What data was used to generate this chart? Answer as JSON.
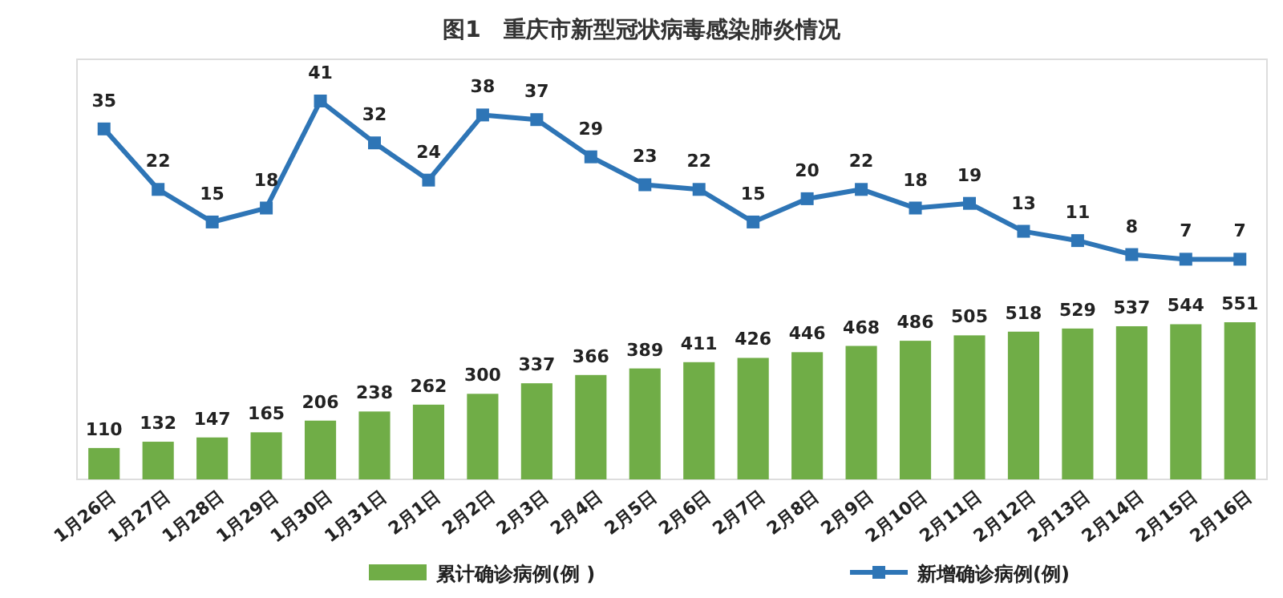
{
  "chart_data": [
    {
      "type": "line",
      "title": "图1　重庆市新型冠状病毒感染肺炎情况",
      "categories": [
        null,
        null,
        null,
        null,
        null,
        null,
        null,
        null,
        null,
        null,
        null,
        null,
        null,
        null,
        null,
        null,
        null,
        null,
        null,
        null,
        null,
        null
      ],
      "series": [
        {
          "name": "新增确诊病例(例)",
          "color": "#2e75b6",
          "values": [
            35,
            22,
            15,
            18,
            41,
            32,
            24,
            38,
            37,
            29,
            23,
            22,
            15,
            20,
            22,
            18,
            19,
            13,
            11,
            8,
            7,
            7
          ]
        }
      ],
      "data_labels": true,
      "marker": "square",
      "legend": "bottom"
    },
    {
      "type": "bar",
      "categories": [
        "1月26日",
        "1月27日",
        "1月28日",
        "1月29日",
        "1月30日",
        "1月31日",
        "2月1日",
        "2月2日",
        "2月3日",
        "2月4日",
        "2月5日",
        "2月6日",
        "2月7日",
        "2月8日",
        "2月9日",
        "2月10日",
        "2月11日",
        "2月12日",
        "2月13日",
        "2月14日",
        "2月15日",
        "2月16日"
      ],
      "series": [
        {
          "name": "累计确诊病例(例 )",
          "color": "#70ad47",
          "values": [
            110,
            132,
            147,
            165,
            206,
            238,
            262,
            300,
            337,
            366,
            389,
            411,
            426,
            446,
            468,
            486,
            505,
            518,
            529,
            537,
            544,
            551
          ]
        }
      ],
      "data_labels": true,
      "legend": "bottom"
    }
  ]
}
